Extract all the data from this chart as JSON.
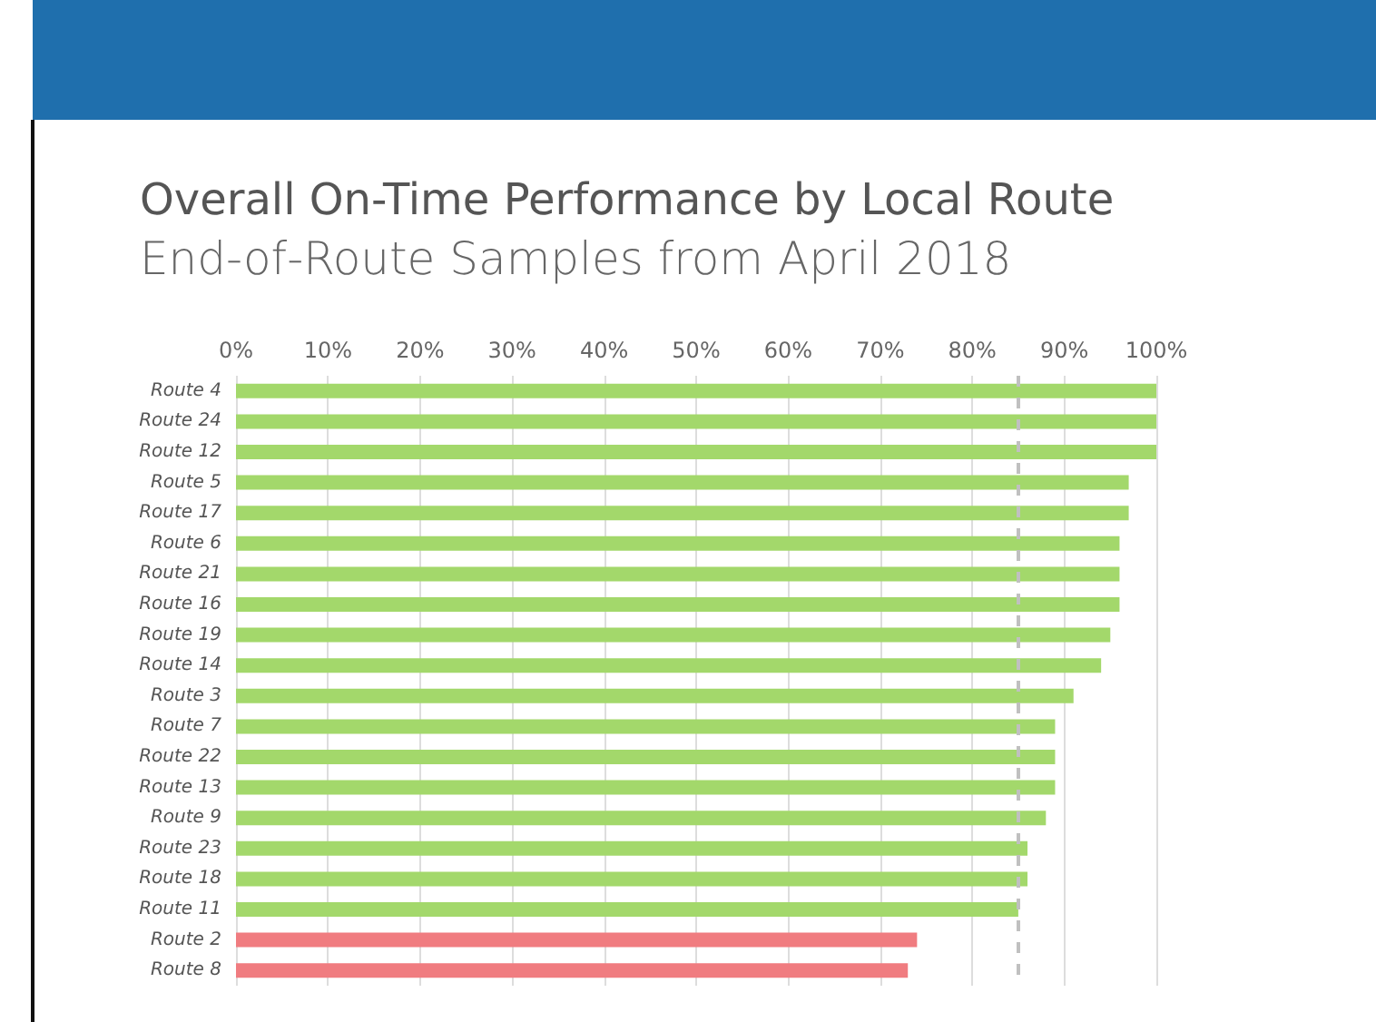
{
  "chart_data": {
    "type": "bar",
    "orientation": "horizontal",
    "title": "Overall On-Time Performance by Local Route",
    "subtitle": "End-of-Route Samples from April 2018",
    "categories": [
      "Route 4",
      "Route 24",
      "Route 12",
      "Route 5",
      "Route 17",
      "Route 6",
      "Route 21",
      "Route 16",
      "Route 19",
      "Route 14",
      "Route 3",
      "Route 7",
      "Route 22",
      "Route 13",
      "Route 9",
      "Route 23",
      "Route 18",
      "Route 11",
      "Route 2",
      "Route 8"
    ],
    "values": [
      100,
      100,
      100,
      97,
      97,
      96,
      96,
      96,
      95,
      94,
      91,
      89,
      89,
      89,
      88,
      86,
      86,
      85,
      74,
      73
    ],
    "colors": [
      "#a3d86b",
      "#a3d86b",
      "#a3d86b",
      "#a3d86b",
      "#a3d86b",
      "#a3d86b",
      "#a3d86b",
      "#a3d86b",
      "#a3d86b",
      "#a3d86b",
      "#a3d86b",
      "#a3d86b",
      "#a3d86b",
      "#a3d86b",
      "#a3d86b",
      "#a3d86b",
      "#a3d86b",
      "#a3d86b",
      "#f07c80",
      "#f07c80"
    ],
    "xlim": [
      0,
      100
    ],
    "xticks": [
      {
        "value": 0,
        "label": "0%"
      },
      {
        "value": 10,
        "label": "10%"
      },
      {
        "value": 20,
        "label": "20%"
      },
      {
        "value": 30,
        "label": "30%"
      },
      {
        "value": 40,
        "label": "40%"
      },
      {
        "value": 50,
        "label": "50%"
      },
      {
        "value": 60,
        "label": "60%"
      },
      {
        "value": 70,
        "label": "70%"
      },
      {
        "value": 80,
        "label": "80%"
      },
      {
        "value": 90,
        "label": "90%"
      },
      {
        "value": 100,
        "label": "100%"
      }
    ],
    "ref_lines": [
      {
        "axis": "x",
        "value": 85,
        "color": "#c0c0c0",
        "line_style": "dashed"
      }
    ],
    "grid": "x"
  }
}
